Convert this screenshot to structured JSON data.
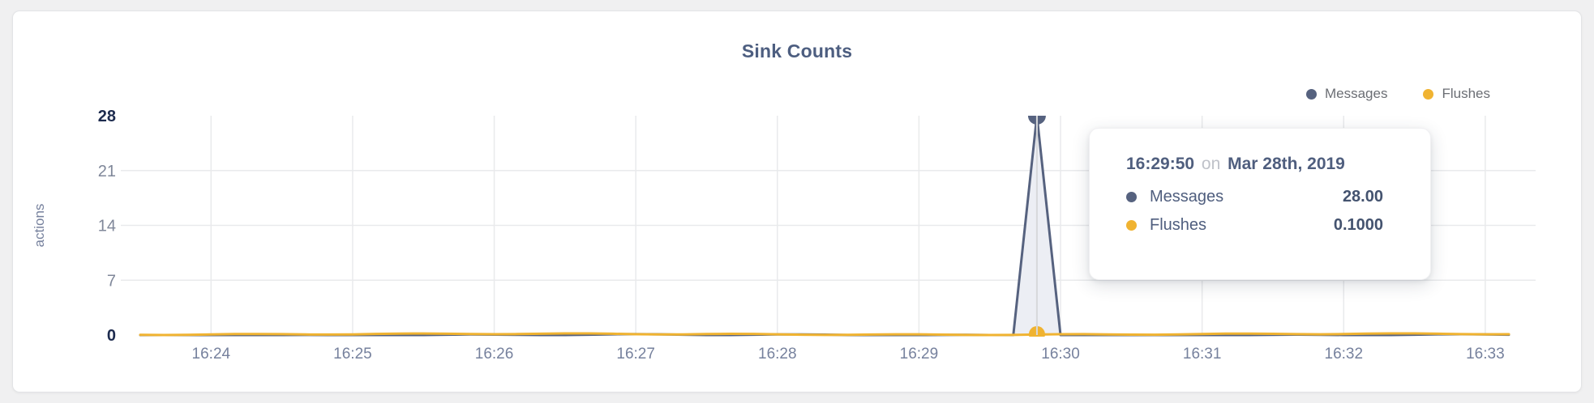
{
  "chart_data": {
    "type": "area",
    "title": "Sink Counts",
    "ylabel": "actions",
    "xlabel": "",
    "ylim": [
      0,
      28
    ],
    "y_ticks": [
      0,
      7,
      14,
      21,
      28
    ],
    "x_ticks": [
      "16:24",
      "16:25",
      "16:26",
      "16:27",
      "16:28",
      "16:29",
      "16:30",
      "16:31",
      "16:32",
      "16:33"
    ],
    "x_range": {
      "start": "16:23:30",
      "end": "16:33:10"
    },
    "sample_interval_s": 10,
    "grid": true,
    "legend_position": "top-right",
    "highlight_time": "16:29:50",
    "series": [
      {
        "name": "Messages",
        "color": "#56627f",
        "area_fill": "#eceef4",
        "baseline_value": 0,
        "spike": {
          "time": "16:29:50",
          "value": 28.0
        }
      },
      {
        "name": "Flushes",
        "color": "#f0b331",
        "baseline_value": 0.1
      }
    ]
  },
  "tooltip": {
    "time": "16:29:50",
    "connector": "on",
    "date": "Mar 28th, 2019",
    "rows": [
      {
        "label": "Messages",
        "color": "#56627f",
        "value": "28.00"
      },
      {
        "label": "Flushes",
        "color": "#f0b331",
        "value": "0.1000"
      }
    ]
  },
  "colors": {
    "title": "#4d5e80",
    "axis_tick": "#7f8799",
    "axis_tick_extreme": "#1d2b4e",
    "x_tick": "#76819d",
    "gridline": "#e9eaec",
    "hover_line": "#d7d8db",
    "page_background": "#f0f0f1"
  }
}
